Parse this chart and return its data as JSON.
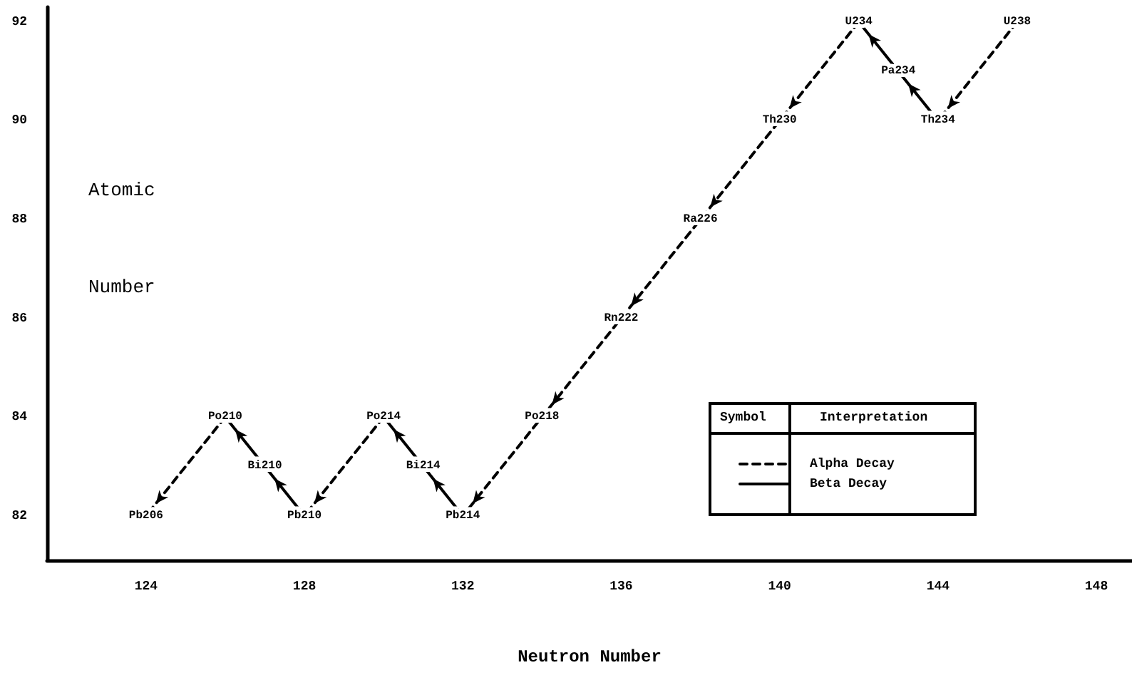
{
  "chart_data": {
    "type": "line",
    "xlabel": "Neutron Number",
    "ylabel": "Atomic Number",
    "legend_title": "Symbol",
    "xlim": [
      121.5,
      148.9
    ],
    "xticks": [
      124,
      128,
      132,
      136,
      140,
      144,
      148
    ],
    "ylim": [
      81.1,
      92.3
    ],
    "yticks": [
      82,
      84,
      86,
      88,
      90,
      92
    ],
    "grid": false,
    "legend": "bottom right",
    "annotations": [
      "Interpretation",
      {
        "text": "U238",
        "x": 146,
        "y": 92
      },
      {
        "text": "Th234",
        "x": 144,
        "y": 90
      },
      {
        "text": "Pa234",
        "x": 143,
        "y": 91
      },
      {
        "text": "U234",
        "x": 142,
        "y": 92
      },
      {
        "text": "Th230",
        "x": 140,
        "y": 90
      },
      {
        "text": "Ra226",
        "x": 138,
        "y": 88
      },
      {
        "text": "Rn222",
        "x": 136,
        "y": 86
      },
      {
        "text": "Po218",
        "x": 134,
        "y": 84
      },
      {
        "text": "Pb214",
        "x": 132,
        "y": 82
      },
      {
        "text": "Bi214",
        "x": 131,
        "y": 83
      },
      {
        "text": "Po214",
        "x": 130,
        "y": 84
      },
      {
        "text": "Pb210",
        "x": 128,
        "y": 82
      },
      {
        "text": "Bi210",
        "x": 127,
        "y": 83
      },
      {
        "text": "Po210",
        "x": 126,
        "y": 84
      },
      {
        "text": "Pb206",
        "x": 124,
        "y": 82
      }
    ],
    "series": [
      {
        "name": "Alpha Decay",
        "line_style": "dashed",
        "color": "#000000",
        "x": [
          146,
          144
        ],
        "values": [
          92,
          90
        ]
      },
      {
        "line_style": "dashed",
        "color": "#000000",
        "x": [
          142,
          140,
          138,
          136,
          134,
          132
        ],
        "values": [
          92,
          90,
          88,
          86,
          84,
          82
        ]
      },
      {
        "line_style": "dashed",
        "color": "#000000",
        "x": [
          130,
          128
        ],
        "values": [
          84,
          82
        ]
      },
      {
        "line_style": "dashed",
        "color": "#000000",
        "x": [
          126,
          124
        ],
        "values": [
          84,
          82
        ]
      },
      {
        "name": "Beta Decay",
        "line_style": "solid",
        "color": "#000000",
        "x": [
          144,
          143,
          142
        ],
        "values": [
          90,
          91,
          92
        ]
      },
      {
        "line_style": "solid",
        "color": "#000000",
        "x": [
          132,
          131,
          130
        ],
        "values": [
          82,
          83,
          84
        ]
      },
      {
        "line_style": "solid",
        "color": "#000000",
        "x": [
          128,
          127,
          126
        ],
        "values": [
          82,
          83,
          84
        ]
      }
    ]
  }
}
